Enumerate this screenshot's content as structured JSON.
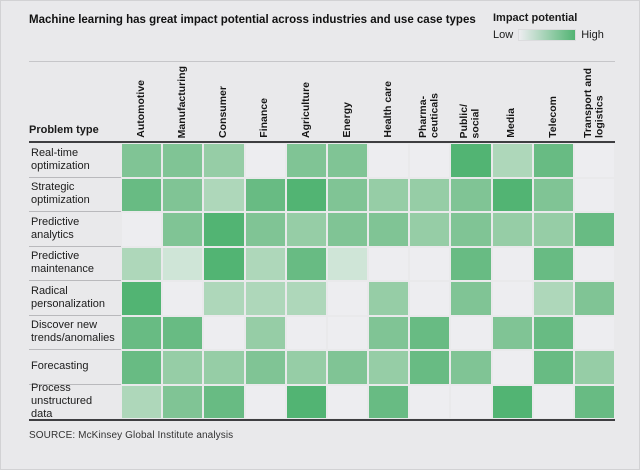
{
  "chart_data": {
    "type": "heatmap",
    "title": "Machine learning has great impact potential across industries and use case types",
    "legend": {
      "title": "Impact potential",
      "low_label": "Low",
      "high_label": "High"
    },
    "row_axis_label": "Problem type",
    "columns": [
      "Automotive",
      "Manufacturing",
      "Consumer",
      "Finance",
      "Agriculture",
      "Energy",
      "Health care",
      "Pharma-\nceuticals",
      "Public/\nsocial",
      "Media",
      "Telecom",
      "Transport and\nlogistics"
    ],
    "rows": [
      "Real-time optimization",
      "Strategic optimization",
      "Predictive analytics",
      "Predictive maintenance",
      "Radical personalization",
      "Discover new trends/anomalies",
      "Forecasting",
      "Process unstructured data"
    ],
    "values": [
      [
        4,
        4,
        3,
        0,
        4,
        4,
        0,
        0,
        6,
        2,
        5,
        0
      ],
      [
        5,
        4,
        2,
        5,
        6,
        4,
        3,
        3,
        4,
        6,
        4,
        0
      ],
      [
        0,
        4,
        6,
        4,
        3,
        4,
        4,
        3,
        4,
        3,
        3,
        5
      ],
      [
        2,
        1,
        6,
        2,
        5,
        1,
        0,
        0,
        5,
        0,
        5,
        0
      ],
      [
        6,
        0,
        2,
        2,
        2,
        0,
        3,
        0,
        4,
        0,
        2,
        4
      ],
      [
        5,
        5,
        0,
        3,
        0,
        0,
        4,
        5,
        0,
        4,
        5,
        0
      ],
      [
        5,
        3,
        3,
        4,
        3,
        4,
        3,
        5,
        4,
        0,
        5,
        3
      ],
      [
        2,
        4,
        5,
        0,
        6,
        0,
        5,
        0,
        0,
        6,
        0,
        5
      ]
    ],
    "value_scale": "0 = low impact (white cell) to 6 = high impact (dark green), estimated from cell color intensity",
    "palette": [
      "#ededf0",
      "#cfe5d7",
      "#aed7ba",
      "#96cda6",
      "#80c495",
      "#68bb83",
      "#52b473"
    ],
    "source": "SOURCE: McKinsey Global Institute analysis"
  }
}
